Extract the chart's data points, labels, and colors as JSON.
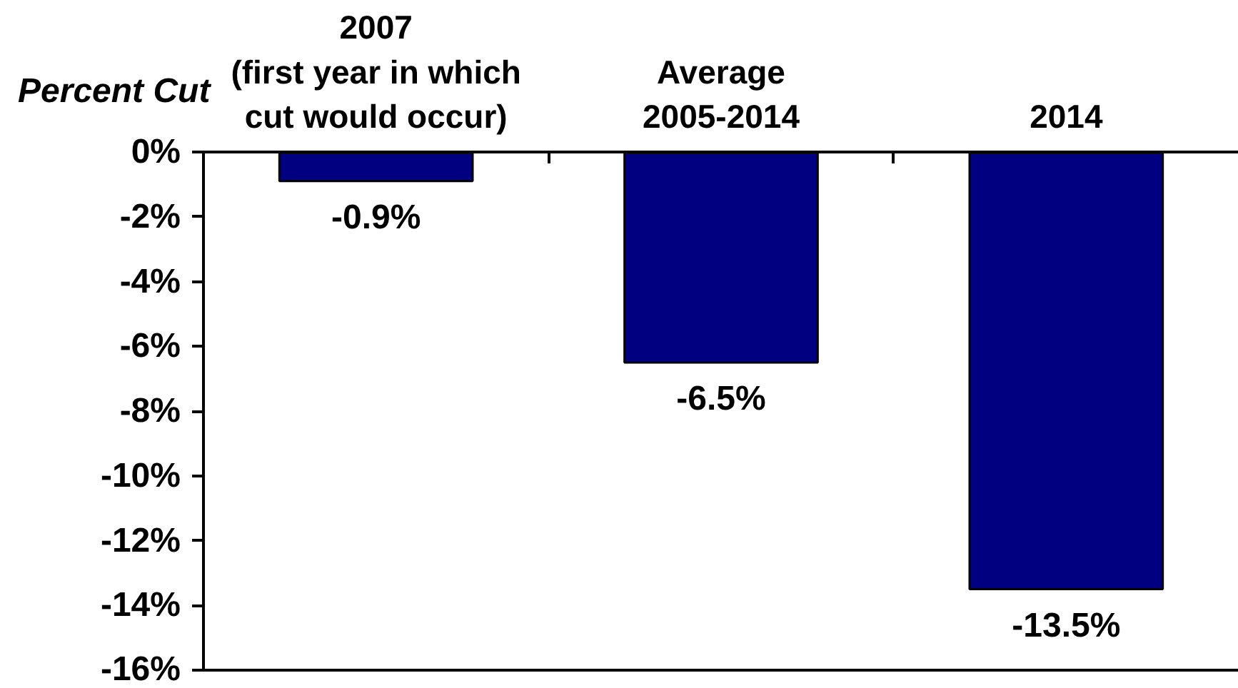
{
  "chart_data": {
    "type": "bar",
    "ylabel": "Percent Cut",
    "categories": [
      "2007\n(first year in which\ncut would occur)",
      "Average\n2005-2014",
      "2014"
    ],
    "values": [
      -0.9,
      -6.5,
      -13.5
    ],
    "color": "#000080",
    "value_labels": [
      "-0.9%",
      "-6.5%",
      "-13.5%"
    ],
    "ylim": [
      -16,
      0
    ],
    "yticks": [
      {
        "value": -16,
        "label": "-16%"
      },
      {
        "value": -14,
        "label": "-14%"
      },
      {
        "value": -12,
        "label": "-12%"
      },
      {
        "value": -10,
        "label": "-10%"
      },
      {
        "value": -8,
        "label": "-8%"
      },
      {
        "value": -6,
        "label": "-6%"
      },
      {
        "value": -4,
        "label": "-4%"
      },
      {
        "value": -2,
        "label": "-2%"
      },
      {
        "value": 0,
        "label": "0%"
      }
    ]
  }
}
